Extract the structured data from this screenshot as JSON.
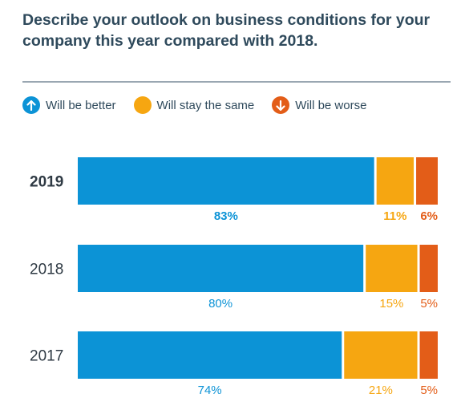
{
  "title": "Describe your outlook on business conditions for your company this year compared with 2018.",
  "colors": {
    "better": "#0c93d6",
    "same": "#f6a611",
    "worse": "#e35d18",
    "title": "#2f4a5c"
  },
  "legend": [
    {
      "label": "Will be better",
      "icon": "arrow-up-icon",
      "color": "#0c93d6"
    },
    {
      "label": "Will stay the same",
      "icon": "circle-icon",
      "color": "#f6a611"
    },
    {
      "label": "Will be worse",
      "icon": "arrow-down-icon",
      "color": "#e35d18"
    }
  ],
  "chart_data": {
    "type": "bar",
    "orientation": "horizontal",
    "stacked": true,
    "categories": [
      "2019",
      "2018",
      "2017"
    ],
    "highlighted_category": "2019",
    "series": [
      {
        "name": "Will be better",
        "values": [
          83,
          80,
          74
        ],
        "labels": [
          "83%",
          "80%",
          "74%"
        ],
        "color": "#0c93d6"
      },
      {
        "name": "Will stay the same",
        "values": [
          11,
          15,
          21
        ],
        "labels": [
          "11%",
          "15%",
          "21%"
        ],
        "color": "#f6a611"
      },
      {
        "name": "Will be worse",
        "values": [
          6,
          5,
          5
        ],
        "labels": [
          "6%",
          "5%",
          "5%"
        ],
        "color": "#e35d18"
      }
    ],
    "xlim": [
      0,
      100
    ],
    "legend_position": "top-left",
    "grid": false
  }
}
